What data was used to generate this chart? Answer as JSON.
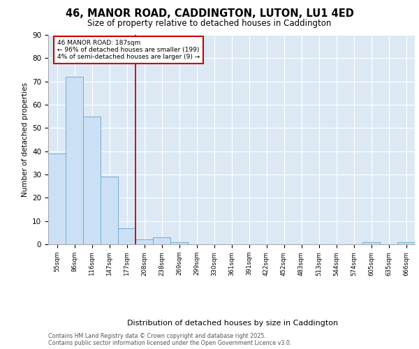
{
  "title_line1": "46, MANOR ROAD, CADDINGTON, LUTON, LU1 4ED",
  "title_line2": "Size of property relative to detached houses in Caddington",
  "xlabel": "Distribution of detached houses by size in Caddington",
  "ylabel": "Number of detached properties",
  "categories": [
    "55sqm",
    "86sqm",
    "116sqm",
    "147sqm",
    "177sqm",
    "208sqm",
    "238sqm",
    "269sqm",
    "299sqm",
    "330sqm",
    "361sqm",
    "391sqm",
    "422sqm",
    "452sqm",
    "483sqm",
    "513sqm",
    "544sqm",
    "574sqm",
    "605sqm",
    "635sqm",
    "666sqm"
  ],
  "values": [
    39,
    72,
    55,
    29,
    7,
    2,
    3,
    1,
    0,
    0,
    0,
    0,
    0,
    0,
    0,
    0,
    0,
    0,
    1,
    0,
    1
  ],
  "bar_color": "#cce0f5",
  "bar_edge_color": "#6aaed6",
  "red_line_index": 4.5,
  "annotation_text": "46 MANOR ROAD: 187sqm\n← 96% of detached houses are smaller (199)\n4% of semi-detached houses are larger (9) →",
  "annotation_box_color": "#ffffff",
  "annotation_box_edge": "#cc0000",
  "ylim": [
    0,
    90
  ],
  "yticks": [
    0,
    10,
    20,
    30,
    40,
    50,
    60,
    70,
    80,
    90
  ],
  "footer_line1": "Contains HM Land Registry data © Crown copyright and database right 2025.",
  "footer_line2": "Contains public sector information licensed under the Open Government Licence v3.0.",
  "bg_color": "#ffffff",
  "plot_bg_color": "#dce9f5"
}
